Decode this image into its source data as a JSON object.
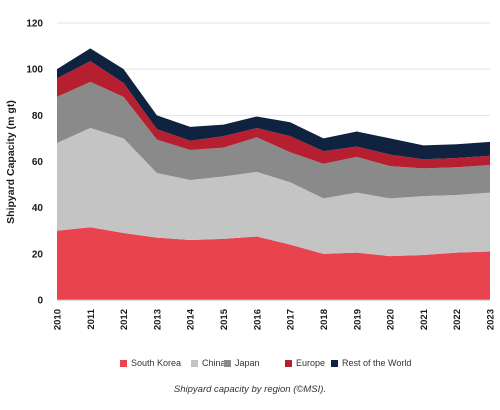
{
  "caption": "Shipyard capacity by region (©MSI).",
  "chart_data": {
    "type": "area",
    "stacked": true,
    "title": "",
    "xlabel": "",
    "ylabel": "Shipyard Capacity (m gt)",
    "ylim": [
      0,
      120
    ],
    "yticks": [
      0,
      20,
      40,
      60,
      80,
      100,
      120
    ],
    "grid": true,
    "legend_position": "bottom",
    "x": [
      "2010",
      "2011",
      "2012",
      "2013",
      "2014",
      "2015",
      "2016",
      "2017",
      "2018",
      "2019",
      "2020",
      "2021",
      "2022",
      "2023"
    ],
    "series": [
      {
        "name": "South Korea",
        "color": "#e8434f",
        "values": [
          30,
          31.5,
          29,
          27,
          26,
          26.5,
          27.5,
          24,
          20,
          20.5,
          19,
          19.5,
          20.5,
          21
        ]
      },
      {
        "name": "China",
        "color": "#c4c4c4",
        "values": [
          38,
          43,
          41,
          28,
          26,
          27,
          28,
          27,
          24,
          26,
          25,
          25.5,
          25,
          25.5
        ]
      },
      {
        "name": "Japan",
        "color": "#8a8a8a",
        "values": [
          20,
          20,
          18,
          14.5,
          13,
          12.5,
          15,
          13,
          15,
          15.5,
          14,
          12,
          12,
          12
        ]
      },
      {
        "name": "Europe",
        "color": "#b51f30",
        "values": [
          8,
          9,
          6,
          4.5,
          4,
          5,
          4,
          7,
          5.5,
          4.5,
          5,
          4,
          4,
          4
        ]
      },
      {
        "name": "Rest of the World",
        "color": "#0f2240",
        "values": [
          4,
          5.5,
          6,
          6,
          6,
          5,
          5,
          6,
          5.5,
          6.5,
          7,
          6,
          6,
          6
        ]
      }
    ]
  }
}
